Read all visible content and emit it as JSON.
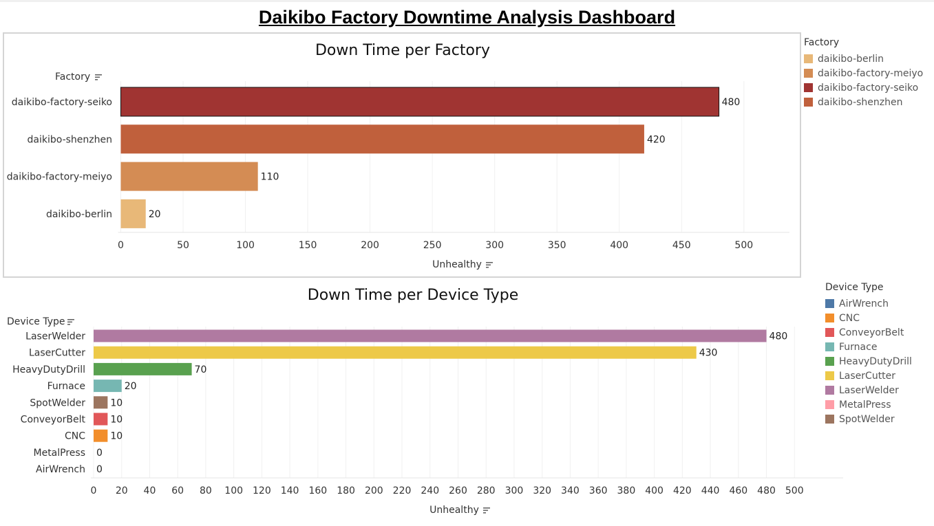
{
  "dashboard": {
    "title": "Daikibo Factory Downtime Analysis Dashboard"
  },
  "chart_data": [
    {
      "type": "bar",
      "orientation": "horizontal",
      "title": "Down Time per Factory",
      "ylabel": "Factory",
      "xlabel": "Unhealthy",
      "categories": [
        "daikibo-factory-seiko",
        "daikibo-shenzhen",
        "daikibo-factory-meiyo",
        "daikibo-berlin"
      ],
      "values": [
        480,
        420,
        110,
        20
      ],
      "colors": [
        "#a03432",
        "#c0603c",
        "#d48c54",
        "#e8b878"
      ],
      "xlim": [
        0,
        520
      ],
      "xticks": [
        0,
        50,
        100,
        150,
        200,
        250,
        300,
        350,
        400,
        450,
        500
      ],
      "grid": true,
      "selected": "daikibo-factory-seiko",
      "legend": {
        "title": "Factory",
        "position": "right",
        "entries": [
          {
            "label": "daikibo-berlin",
            "color": "#e8b878"
          },
          {
            "label": "daikibo-factory-meiyo",
            "color": "#d48c54"
          },
          {
            "label": "daikibo-factory-seiko",
            "color": "#a03432"
          },
          {
            "label": "daikibo-shenzhen",
            "color": "#c0603c"
          }
        ]
      }
    },
    {
      "type": "bar",
      "orientation": "horizontal",
      "title": "Down Time per Device Type",
      "ylabel": "Device Type",
      "xlabel": "Unhealthy",
      "categories": [
        "LaserWelder",
        "LaserCutter",
        "HeavyDutyDrill",
        "Furnace",
        "SpotWelder",
        "ConveyorBelt",
        "CNC",
        "MetalPress",
        "AirWrench"
      ],
      "values": [
        480,
        430,
        70,
        20,
        10,
        10,
        10,
        0,
        0
      ],
      "colors": [
        "#b07aa1",
        "#edc948",
        "#59a14f",
        "#76b7b2",
        "#9c755f",
        "#e15759",
        "#f28e2b",
        "#ff9da7",
        "#4e79a7"
      ],
      "xlim": [
        0,
        520
      ],
      "xticks": [
        0,
        20,
        40,
        60,
        80,
        100,
        120,
        140,
        160,
        180,
        200,
        220,
        240,
        260,
        280,
        300,
        320,
        340,
        360,
        380,
        400,
        420,
        440,
        460,
        480,
        500
      ],
      "grid": true,
      "legend": {
        "title": "Device Type",
        "position": "right",
        "entries": [
          {
            "label": "AirWrench",
            "color": "#4e79a7"
          },
          {
            "label": "CNC",
            "color": "#f28e2b"
          },
          {
            "label": "ConveyorBelt",
            "color": "#e15759"
          },
          {
            "label": "Furnace",
            "color": "#76b7b2"
          },
          {
            "label": "HeavyDutyDrill",
            "color": "#59a14f"
          },
          {
            "label": "LaserCutter",
            "color": "#edc948"
          },
          {
            "label": "LaserWelder",
            "color": "#b07aa1"
          },
          {
            "label": "MetalPress",
            "color": "#ff9da7"
          },
          {
            "label": "SpotWelder",
            "color": "#9c755f"
          }
        ]
      }
    }
  ]
}
